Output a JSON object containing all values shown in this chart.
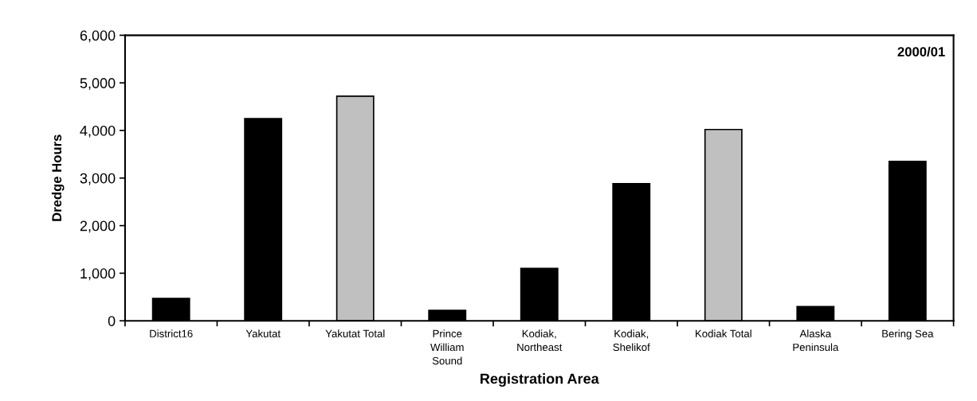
{
  "chart_data": {
    "type": "bar",
    "categories": [
      "District16",
      "Yakutat",
      "Yakutat Total",
      "Prince\nWilliam\nSound",
      "Kodiak,\nNortheast",
      "Kodiak,\nShelikof",
      "Kodiak Total",
      "Alaska\nPeninsula",
      "Bering Sea"
    ],
    "values": [
      470,
      4250,
      4720,
      220,
      1100,
      2880,
      4020,
      300,
      3350
    ],
    "colors": [
      "#000000",
      "#000000",
      "#c0c0c0",
      "#000000",
      "#000000",
      "#000000",
      "#c0c0c0",
      "#000000",
      "#000000"
    ],
    "annotations": [
      "2000/01"
    ],
    "xlabel": "Registration Area",
    "ylabel": "Dredge Hours",
    "ylim": [
      0,
      6000
    ],
    "yticks": [
      {
        "value": 0,
        "label": "0"
      },
      {
        "value": 1000,
        "label": "1,000"
      },
      {
        "value": 2000,
        "label": "2,000"
      },
      {
        "value": 3000,
        "label": "3,000"
      },
      {
        "value": 4000,
        "label": "4,000"
      },
      {
        "value": 5000,
        "label": "5,000"
      },
      {
        "value": 6000,
        "label": "6,000"
      }
    ],
    "grid": false
  }
}
